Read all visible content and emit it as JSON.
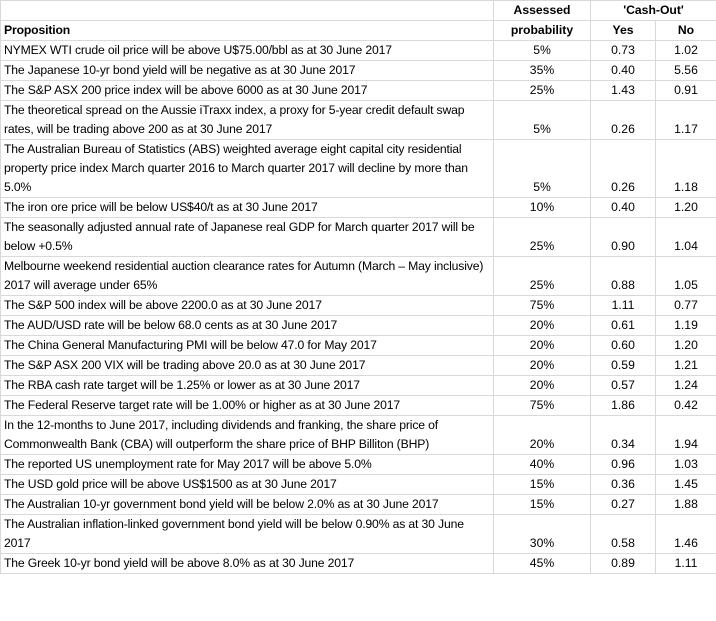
{
  "header": {
    "assessed": "Assessed",
    "probability": "probability",
    "cash_out": "'Cash-Out'",
    "proposition": "Proposition",
    "yes": "Yes",
    "no": "No"
  },
  "table": {
    "rows": [
      [
        "NYMEX WTI crude oil price will be above U$75.00/bbl as at 30 June 2017",
        "5%",
        "0.73",
        "1.02"
      ],
      [
        "The Japanese 10-yr bond yield will be negative as at 30 June 2017",
        "35%",
        "0.40",
        "5.56"
      ],
      [
        "The S&P ASX 200 price index will be above 6000 as at 30 June 2017",
        "25%",
        "1.43",
        "0.91"
      ],
      [
        "The theoretical spread on the Aussie iTraxx index, a proxy for 5-year credit default swap rates, will be trading above 200 as at 30 June 2017",
        "5%",
        "0.26",
        "1.17"
      ],
      [
        "The Australian Bureau of Statistics (ABS) weighted average eight capital city residential property price index March quarter 2016 to March quarter 2017 will decline by more than 5.0%",
        "5%",
        "0.26",
        "1.18"
      ],
      [
        "The iron ore price will be below US$40/t as at 30 June 2017",
        "10%",
        "0.40",
        "1.20"
      ],
      [
        "The seasonally adjusted annual rate of Japanese real GDP for March quarter 2017 will be below +0.5%",
        "25%",
        "0.90",
        "1.04"
      ],
      [
        "Melbourne weekend residential auction clearance rates for Autumn (March – May inclusive) 2017 will average under 65%",
        "25%",
        "0.88",
        "1.05"
      ],
      [
        "The S&P 500 index will be above 2200.0 as at 30 June 2017",
        "75%",
        "1.11",
        "0.77"
      ],
      [
        "The AUD/USD rate will be below 68.0 cents as at 30 June 2017",
        "20%",
        "0.61",
        "1.19"
      ],
      [
        "The China General Manufacturing PMI will be below 47.0 for May 2017",
        "20%",
        "0.60",
        "1.20"
      ],
      [
        "The S&P ASX 200 VIX will be trading above 20.0 as at 30 June 2017",
        "20%",
        "0.59",
        "1.21"
      ],
      [
        "The RBA cash rate target will be 1.25% or lower as at 30 June 2017",
        "20%",
        "0.57",
        "1.24"
      ],
      [
        "The Federal Reserve target rate will be 1.00% or higher as at 30 June 2017",
        "75%",
        "1.86",
        "0.42"
      ],
      [
        "In the 12-months to June 2017, including dividends and franking, the share price of Commonwealth Bank (CBA) will outperform the share price of BHP Billiton (BHP)",
        "20%",
        "0.34",
        "1.94"
      ],
      [
        "The reported US unemployment rate for May 2017 will be above 5.0%",
        "40%",
        "0.96",
        "1.03"
      ],
      [
        "The USD gold price will be above US$1500 as at 30 June 2017",
        "15%",
        "0.36",
        "1.45"
      ],
      [
        "The Australian 10-yr government bond yield will be below 2.0% as at 30 June 2017",
        "15%",
        "0.27",
        "1.88"
      ],
      [
        "The Australian inflation-linked government bond yield will be below 0.90% as at 30 June 2017",
        "30%",
        "0.58",
        "1.46"
      ],
      [
        "The Greek 10-yr bond yield will be above 8.0% as at 30 June 2017",
        "45%",
        "0.89",
        "1.11"
      ]
    ]
  }
}
